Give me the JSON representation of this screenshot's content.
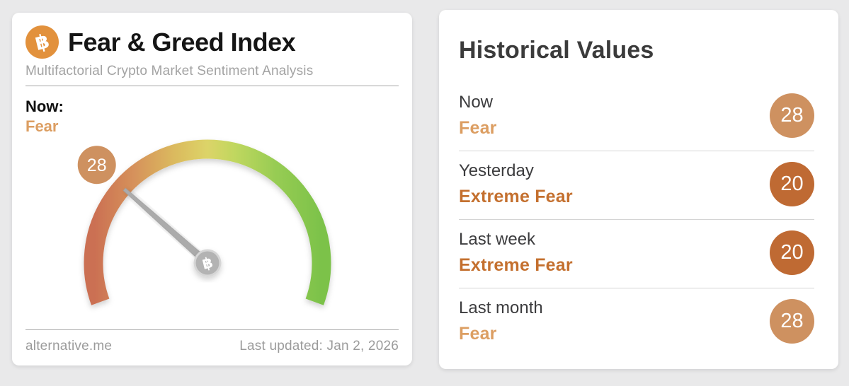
{
  "colors": {
    "bitcoin_orange": "#E2913C",
    "fear_text": "#DC9E62",
    "extreme_fear_text": "#C4702F",
    "badge_fear": "#CE9160",
    "badge_extreme_fear": "#BF6A33",
    "needle_gray": "#ABABAB"
  },
  "left_card": {
    "logo_icon": "bitcoin-icon",
    "title": "Fear & Greed Index",
    "subtitle": "Multifactorial Crypto Market Sentiment Analysis",
    "now_label": "Now:",
    "now_value": "Fear",
    "footer_source": "alternative.me",
    "footer_updated": "Last updated: Jan 2, 2026"
  },
  "chart_data": {
    "type": "gauge",
    "title": "Fear & Greed Index",
    "value": 28,
    "min": 0,
    "max": 100,
    "classification": "Fear",
    "arc_span_degrees": 220,
    "scale_colors": [
      "#CB6F52",
      "#D6925B",
      "#DBB95E",
      "#DCD468",
      "#C0D75F",
      "#97CC53",
      "#7CC24A"
    ],
    "scale_stops": [
      0,
      0.18,
      0.35,
      0.5,
      0.62,
      0.8,
      1
    ]
  },
  "right_card": {
    "title": "Historical Values",
    "rows": [
      {
        "label": "Now",
        "classification": "Fear",
        "value": 28,
        "severity": "fear"
      },
      {
        "label": "Yesterday",
        "classification": "Extreme Fear",
        "value": 20,
        "severity": "extreme_fear"
      },
      {
        "label": "Last week",
        "classification": "Extreme Fear",
        "value": 20,
        "severity": "extreme_fear"
      },
      {
        "label": "Last month",
        "classification": "Fear",
        "value": 28,
        "severity": "fear"
      }
    ]
  }
}
